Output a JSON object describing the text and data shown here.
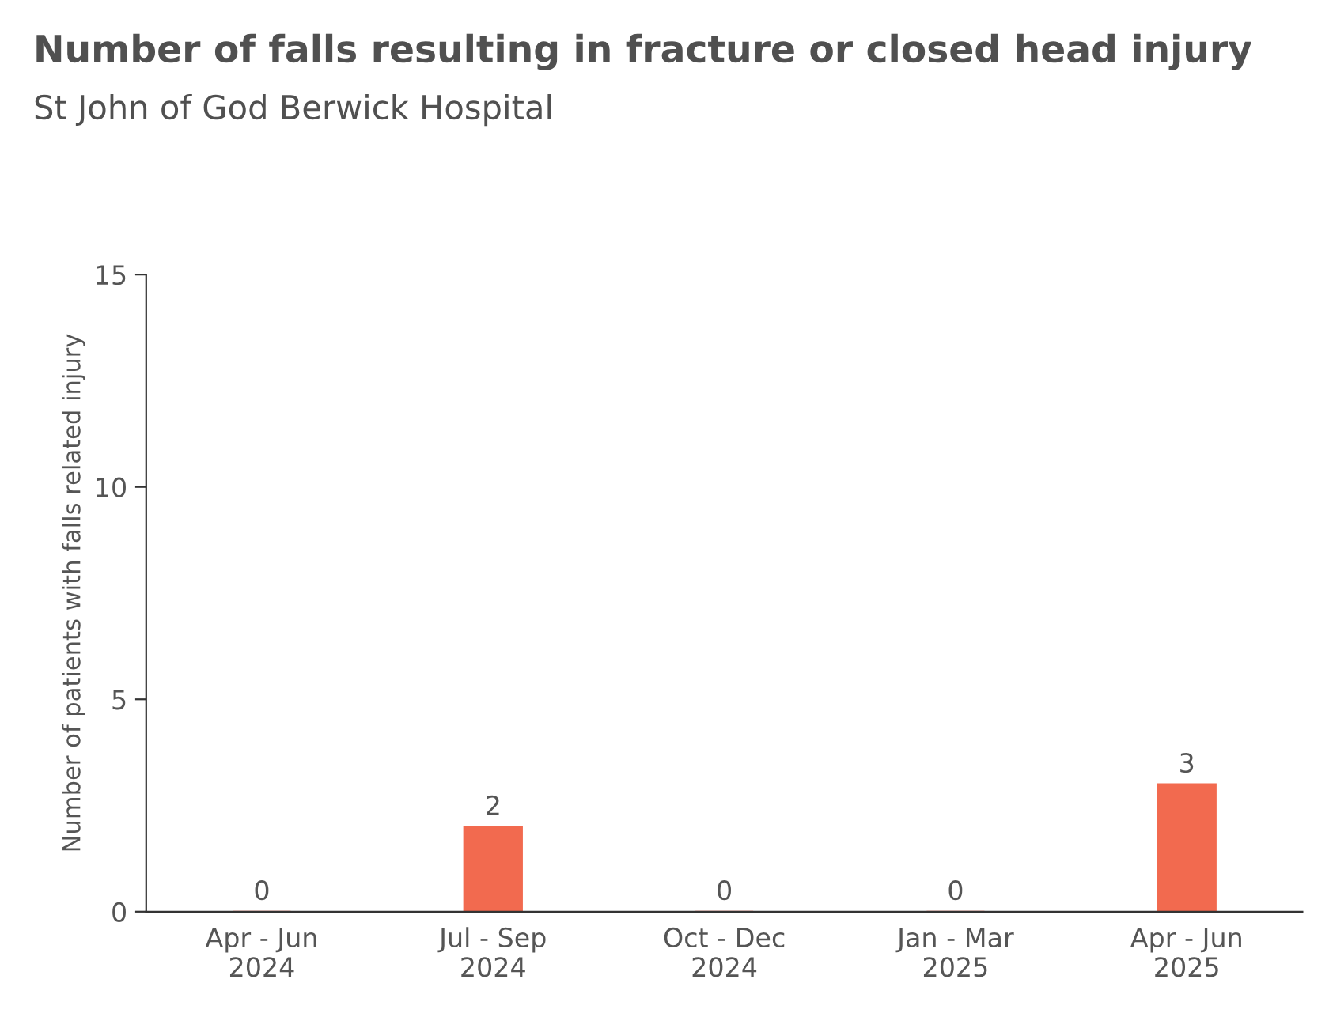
{
  "chart_data": {
    "type": "bar",
    "title": "Number of falls resulting in fracture or closed head injury",
    "subtitle": "St John of God Berwick Hospital",
    "ylabel": "Number of patients with falls related injury",
    "categories": [
      "Apr - Jun\n2024",
      "Jul - Sep\n2024",
      "Oct - Dec\n2024",
      "Jan - Mar\n2025",
      "Apr - Jun\n2025"
    ],
    "values": [
      0,
      2,
      0,
      0,
      3
    ],
    "color": "#f26a4f",
    "ylim": [
      0,
      15
    ],
    "yticks": [
      0,
      5,
      10,
      15
    ],
    "grid": false,
    "data_labels": true
  }
}
